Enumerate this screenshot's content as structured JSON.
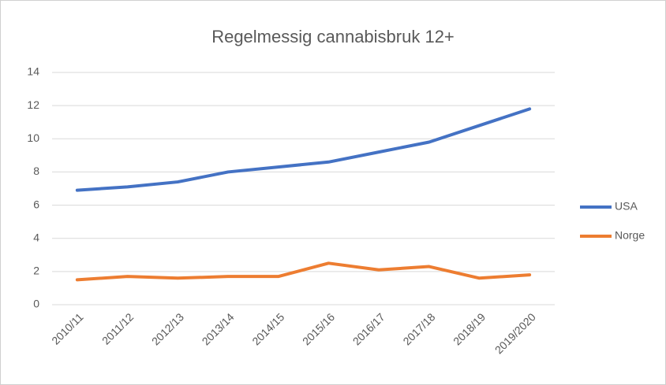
{
  "chart_data": {
    "type": "line",
    "title": "Regelmessig cannabisbruk 12+",
    "categories": [
      "2010/11",
      "2011/12",
      "2012/13",
      "2013/14",
      "2014/15",
      "2015/16",
      "2016/17",
      "2017/18",
      "2018/19",
      "2019/2020"
    ],
    "series": [
      {
        "name": "USA",
        "color": "#4472c4",
        "values": [
          6.9,
          7.1,
          7.4,
          8.0,
          8.3,
          8.6,
          9.2,
          9.8,
          10.8,
          11.8
        ]
      },
      {
        "name": "Norge",
        "color": "#ed7d31",
        "values": [
          1.5,
          1.7,
          1.6,
          1.7,
          1.7,
          2.5,
          2.1,
          2.3,
          1.6,
          1.8
        ]
      }
    ],
    "ylim": [
      0,
      14
    ],
    "yticks": [
      0,
      2,
      4,
      6,
      8,
      10,
      12,
      14
    ],
    "grid": true,
    "legend": "right"
  }
}
